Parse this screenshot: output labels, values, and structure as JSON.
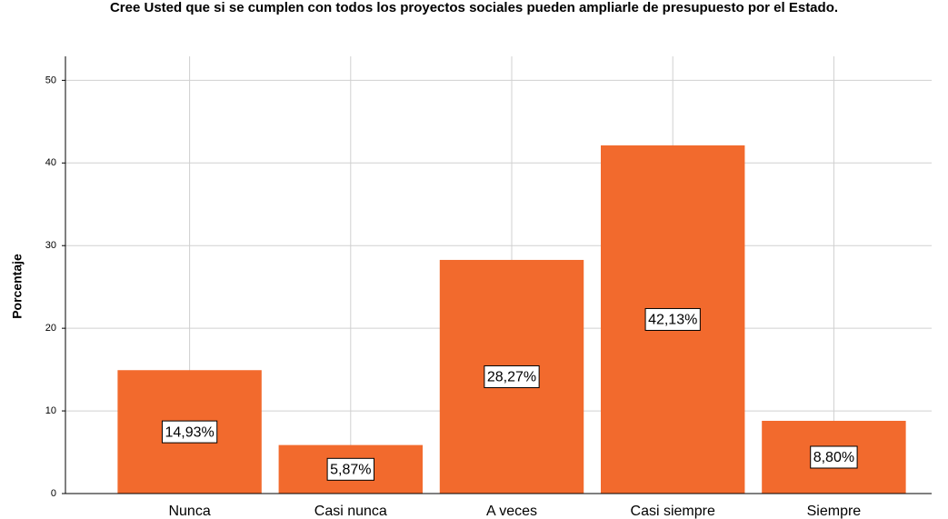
{
  "chart_data": {
    "type": "bar",
    "title": "Cree Usted que si se cumplen con todos los proyectos sociales pueden ampliarle de presupuesto por el Estado.",
    "y_label": "Porcentaje",
    "categories": [
      "Nunca",
      "Casi nunca",
      "A veces",
      "Casi siempre",
      "Siempre"
    ],
    "values": [
      14.93,
      5.87,
      28.27,
      42.13,
      8.8
    ],
    "value_labels": [
      "14,93%",
      "5,87%",
      "28,27%",
      "42,13%",
      "8,80%"
    ],
    "color": "#f26a2d",
    "ylim": [
      0,
      52.9
    ],
    "yticks": [
      0,
      10,
      20,
      30,
      40,
      50
    ],
    "grid": true
  }
}
